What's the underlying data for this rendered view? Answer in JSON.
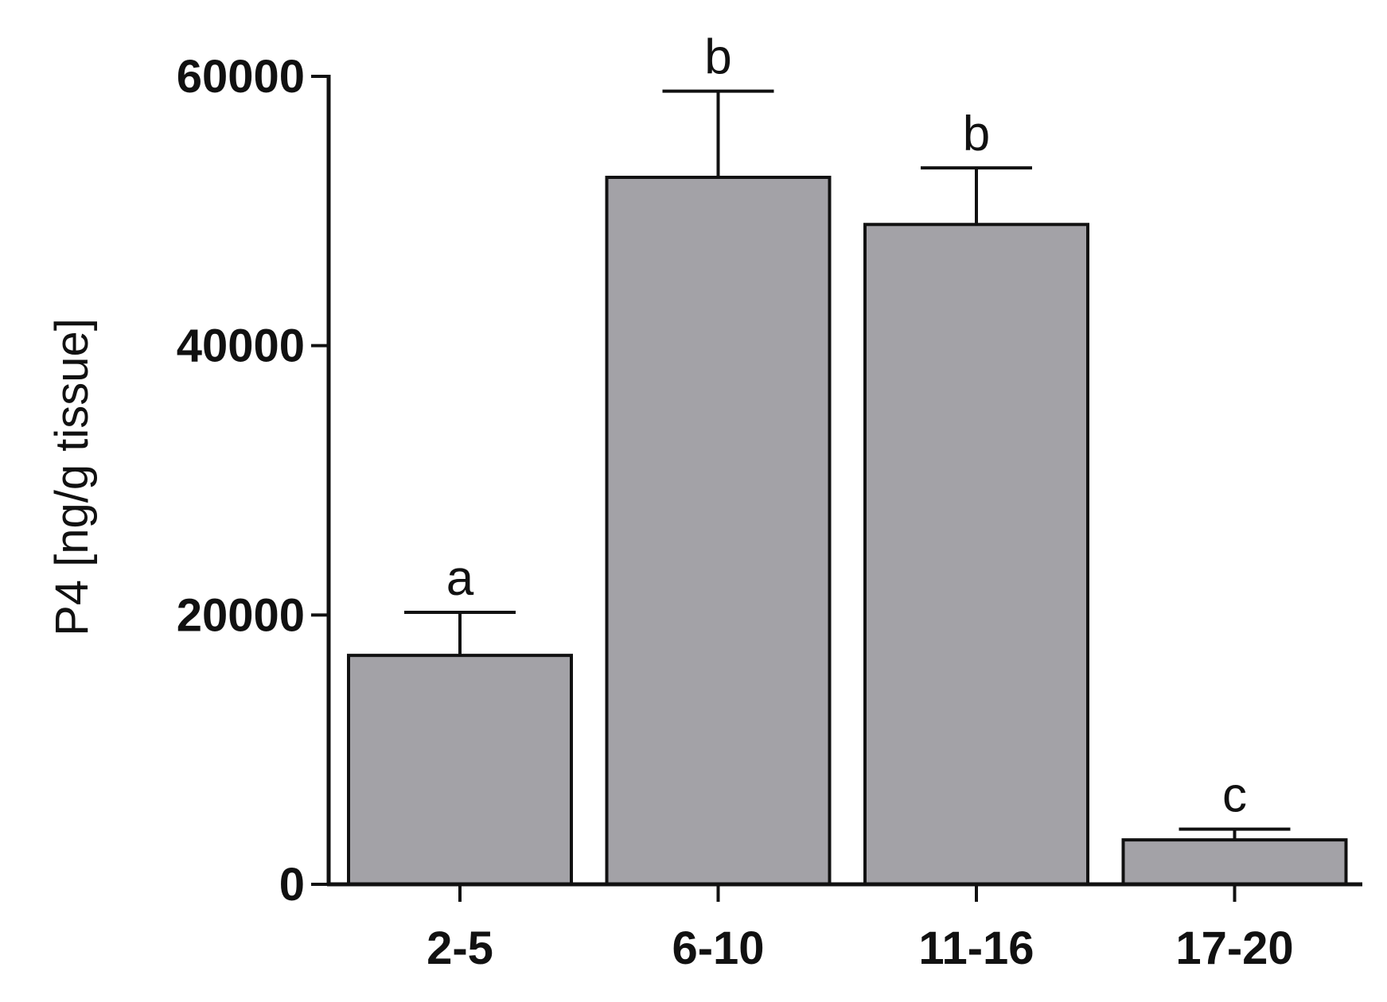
{
  "chart_data": {
    "type": "bar",
    "title": "",
    "xlabel": "",
    "ylabel": "P4 [ng/g tissue]",
    "categories": [
      "2-5",
      "6-10",
      "11-16",
      "17-20"
    ],
    "values": [
      17000,
      52500,
      49000,
      3300
    ],
    "error_upper": [
      20200,
      58900,
      53200,
      4100
    ],
    "significance_labels": [
      "a",
      "b",
      "b",
      "c"
    ],
    "ylim": [
      0,
      60000
    ],
    "yticks": [
      0,
      20000,
      40000,
      60000
    ],
    "ytick_labels": [
      "0",
      "20000",
      "40000",
      "60000"
    ],
    "bar_color": "#a3a2a7",
    "edge_color": "#111111",
    "grid": false,
    "legend": "none"
  }
}
